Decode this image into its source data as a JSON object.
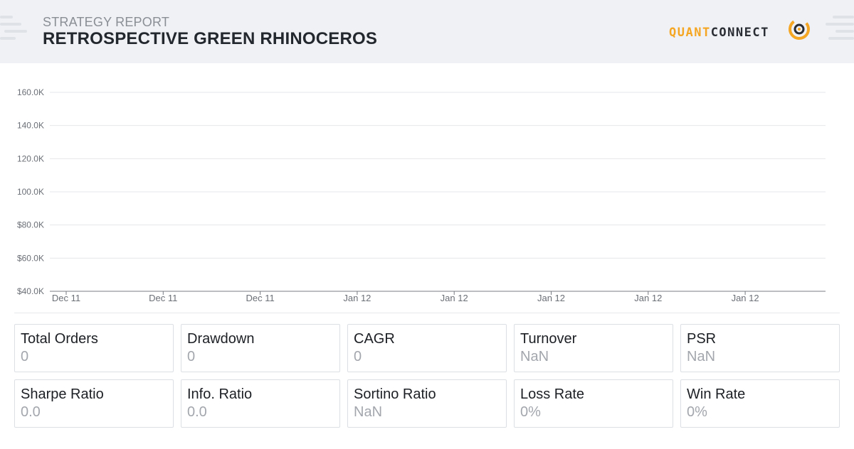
{
  "header": {
    "subtitle": "STRATEGY REPORT",
    "title": "RETROSPECTIVE GREEN RHINOCEROS",
    "logo": {
      "part1": "QUANT",
      "part2": "CONNECT",
      "icon": "quantconnect-logo-icon"
    }
  },
  "colors": {
    "accent": "#f5a623",
    "header_bg": "#eff1f4",
    "grid": "#e5e7ea",
    "axis": "#777b82"
  },
  "chart_data": {
    "type": "line",
    "title": "",
    "xlabel": "",
    "ylabel": "",
    "y_ticks": [
      "160.0K",
      "140.0K",
      "120.0K",
      "100.0K",
      "$80.0K",
      "$60.0K",
      "$40.0K"
    ],
    "y_values": [
      160000,
      140000,
      120000,
      100000,
      80000,
      60000,
      40000
    ],
    "ylim": [
      40000,
      160000
    ],
    "x_ticks": [
      "Dec 11",
      "Dec 11",
      "Dec 11",
      "Jan 12",
      "Jan 12",
      "Jan 12",
      "Jan 12",
      "Jan 12"
    ],
    "series": [],
    "grid": true
  },
  "stats": [
    {
      "label": "Total Orders",
      "value": "0"
    },
    {
      "label": "Drawdown",
      "value": "0"
    },
    {
      "label": "CAGR",
      "value": "0"
    },
    {
      "label": "Turnover",
      "value": "NaN"
    },
    {
      "label": "PSR",
      "value": "NaN"
    },
    {
      "label": "Sharpe Ratio",
      "value": "0.0"
    },
    {
      "label": "Info. Ratio",
      "value": "0.0"
    },
    {
      "label": "Sortino Ratio",
      "value": "NaN"
    },
    {
      "label": "Loss Rate",
      "value": "0%"
    },
    {
      "label": "Win Rate",
      "value": "0%"
    }
  ]
}
